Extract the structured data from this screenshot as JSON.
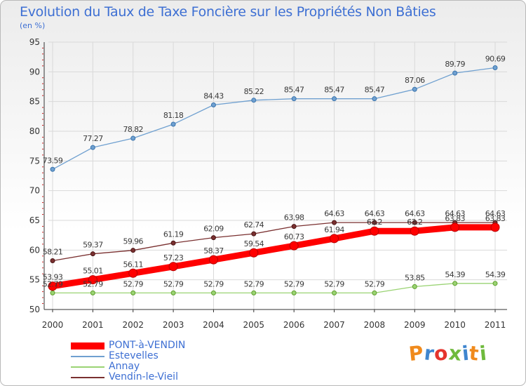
{
  "title": "Evolution du Taux de Taxe Foncière sur les Propriétés Non Bâties",
  "subtitle": "(en %)",
  "logo_text": "Proxiti",
  "colors": {
    "title": "#3d6fd3",
    "axis": "#333333",
    "grid": "#d9d9d9",
    "minor_tick": "#cc2222",
    "logo": [
      "#f08a1c",
      "#3f86cf",
      "#e5342d",
      "#6fba3d",
      "#3f86cf",
      "#f08a1c",
      "#6fba3d"
    ]
  },
  "chart_data": {
    "type": "line",
    "title": "Evolution du Taux de Taxe Foncière sur les Propriétés Non Bâties",
    "ylabel": "(en %)",
    "xlabel": "",
    "x": [
      "2000",
      "2001",
      "2002",
      "2003",
      "2004",
      "2005",
      "2006",
      "2007",
      "2008",
      "2009",
      "2010",
      "2011"
    ],
    "ylim": [
      50,
      95
    ],
    "yticks": [
      50,
      55,
      60,
      65,
      70,
      75,
      80,
      85,
      90,
      95
    ],
    "grid": true,
    "legend_position": "bottom-left",
    "series": [
      {
        "name": "PONT-à-VENDIN",
        "color": "#ff0000",
        "values": [
          53.93,
          55.01,
          56.11,
          57.23,
          58.37,
          59.54,
          60.73,
          61.94,
          63.2,
          63.2,
          63.83,
          63.83
        ],
        "labels": [
          "53.93",
          "55.01",
          "56.11",
          "57.23",
          "58.37",
          "59.54",
          "60.73",
          "61.94",
          "63.2",
          "63.2",
          "63.83",
          "63.83"
        ]
      },
      {
        "name": "Estevelles",
        "color": "#6fa0d0",
        "values": [
          73.59,
          77.27,
          78.82,
          81.18,
          84.43,
          85.22,
          85.47,
          85.47,
          85.47,
          87.06,
          89.79,
          90.69
        ],
        "labels": [
          "73.59",
          "77.27",
          "78.82",
          "81.18",
          "84.43",
          "85.22",
          "85.47",
          "85.47",
          "85.47",
          "87.06",
          "89.79",
          "90.69"
        ]
      },
      {
        "name": "Annay",
        "color": "#9ad373",
        "values": [
          52.79,
          52.79,
          52.79,
          52.79,
          52.79,
          52.79,
          52.79,
          52.79,
          52.79,
          53.85,
          54.39,
          54.39
        ],
        "labels": [
          "52.79",
          "52.79",
          "52.79",
          "52.79",
          "52.79",
          "52.79",
          "52.79",
          "52.79",
          "52.79",
          "53.85",
          "54.39",
          "54.39"
        ]
      },
      {
        "name": "Vendin-le-Vieil",
        "color": "#7a3030",
        "values": [
          58.21,
          59.37,
          59.96,
          61.19,
          62.09,
          62.74,
          63.98,
          64.63,
          64.63,
          64.63,
          64.63,
          64.63
        ],
        "labels": [
          "58.21",
          "59.37",
          "59.96",
          "61.19",
          "62.09",
          "62.74",
          "63.98",
          "64.63",
          "64.63",
          "64.63",
          "64.63",
          "64.63"
        ]
      }
    ]
  }
}
